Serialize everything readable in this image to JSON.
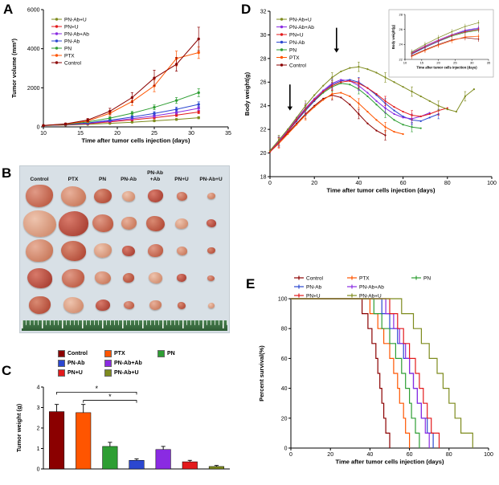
{
  "panels": {
    "A": "A",
    "B": "B",
    "C": "C",
    "D": "D",
    "E": "E"
  },
  "colors": {
    "Control": "#8B0000",
    "PTX": "#FF5500",
    "PN": "#2E9E33",
    "PN-Ab": "#2B47D0",
    "PN-Ab+Ab": "#8A2BE2",
    "PN+U": "#E31A1C",
    "PN-Ab+U": "#7E8B1E"
  },
  "panelB": {
    "bg": "#d8e0e6",
    "rows": 5,
    "row_scale": [
      1.0,
      1.2,
      1.0,
      0.9,
      0.8
    ],
    "columns": [
      {
        "top": "",
        "label": "Control",
        "slot": 44,
        "size": 34
      },
      {
        "top": "",
        "label": "PTX",
        "slot": 40,
        "size": 31
      },
      {
        "top": "",
        "label": "PN",
        "slot": 33,
        "size": 22
      },
      {
        "top": "",
        "label": "PN-Ab",
        "slot": 32,
        "size": 16
      },
      {
        "top": "PN-Ab",
        "label": "+Ab",
        "slot": 34,
        "size": 19
      },
      {
        "top": "",
        "label": "PN+U",
        "slot": 32,
        "size": 13
      },
      {
        "top": "",
        "label": "PN-Ab+U",
        "slot": 41,
        "size": 10
      }
    ],
    "palette": [
      [
        "#e09a86",
        "#b34a32"
      ],
      [
        "#e8b09a",
        "#c06a4a"
      ],
      [
        "#d98a72",
        "#a83a28"
      ],
      [
        "#eec4ae",
        "#c97e5e"
      ],
      [
        "#d87a6a",
        "#9e3226"
      ]
    ],
    "radii": [
      "50% 45% 55% 50%",
      "45% 55% 48% 52%",
      "55% 48% 50% 45%",
      "48% 52% 45% 55%"
    ]
  },
  "chart_data": [
    {
      "id": "A",
      "type": "line",
      "xlabel": "Time after tumor cells injection (days)",
      "ylabel": "Tumor volume (mm³)",
      "xlim": [
        10,
        35
      ],
      "ylim": [
        0,
        6000
      ],
      "xticks": [
        10,
        15,
        20,
        25,
        30,
        35
      ],
      "yticks": [
        0,
        2000,
        4000,
        6000
      ],
      "x": [
        10,
        13,
        16,
        19,
        22,
        25,
        28,
        31
      ],
      "legend_order": [
        "PN-Ab+U",
        "PN+U",
        "PN-Ab+Ab",
        "PN-Ab",
        "PN",
        "PTX",
        "Control"
      ],
      "series": [
        {
          "name": "PN-Ab+U",
          "y": [
            70,
            90,
            130,
            180,
            240,
            310,
            380,
            470
          ],
          "err": [
            15,
            18,
            22,
            28,
            35,
            40,
            45,
            55
          ]
        },
        {
          "name": "PN+U",
          "y": [
            70,
            100,
            160,
            260,
            360,
            470,
            600,
            760
          ],
          "err": [
            15,
            20,
            30,
            40,
            50,
            60,
            70,
            85
          ]
        },
        {
          "name": "PN-Ab+Ab",
          "y": [
            70,
            110,
            180,
            300,
            420,
            560,
            740,
            950
          ],
          "err": [
            15,
            22,
            35,
            45,
            60,
            75,
            90,
            110
          ]
        },
        {
          "name": "PN-Ab",
          "y": [
            70,
            115,
            200,
            340,
            500,
            690,
            900,
            1150
          ],
          "err": [
            15,
            25,
            40,
            55,
            70,
            90,
            110,
            130
          ]
        },
        {
          "name": "PN",
          "y": [
            70,
            125,
            250,
            450,
            700,
            1000,
            1350,
            1750
          ],
          "err": [
            15,
            30,
            50,
            70,
            90,
            120,
            150,
            200
          ]
        },
        {
          "name": "PTX",
          "y": [
            70,
            140,
            300,
            700,
            1300,
            2100,
            3500,
            3800
          ],
          "err": [
            20,
            40,
            70,
            120,
            200,
            300,
            380,
            300
          ]
        },
        {
          "name": "Control",
          "y": [
            70,
            150,
            350,
            800,
            1500,
            2500,
            3200,
            4500
          ],
          "err": [
            20,
            45,
            80,
            150,
            250,
            400,
            350,
            600
          ]
        }
      ]
    },
    {
      "id": "C",
      "type": "bar",
      "ylabel": "Tumor weight (g)",
      "ylim": [
        0,
        4
      ],
      "yticks": [
        0,
        1,
        2,
        3,
        4
      ],
      "categories": [
        "Control",
        "PTX",
        "PN",
        "PN-Ab",
        "PN-Ab+Ab",
        "PN+U",
        "PN-Ab+U"
      ],
      "values": [
        2.8,
        2.75,
        1.1,
        0.42,
        0.95,
        0.35,
        0.12
      ],
      "errors": [
        0.35,
        0.4,
        0.2,
        0.07,
        0.15,
        0.07,
        0.05
      ],
      "legend_rows": [
        [
          "Control",
          "PTX",
          "PN"
        ],
        [
          "PN-Ab",
          "PN-Ab+Ab"
        ],
        [
          "PN+U",
          "PN-Ab+U"
        ]
      ],
      "sig": [
        {
          "from": 0,
          "to": 3,
          "y": 3.75,
          "label": "*"
        },
        {
          "from": 1,
          "to": 3,
          "y": 3.35,
          "label": "*"
        }
      ]
    },
    {
      "id": "D",
      "type": "line",
      "xlabel": "Time after tumor cells injection (days)",
      "ylabel": "Body weight(g)",
      "xlim": [
        0,
        100
      ],
      "ylim": [
        18,
        32
      ],
      "xticks": [
        0,
        20,
        40,
        60,
        80,
        100
      ],
      "yticks": [
        18,
        20,
        22,
        24,
        26,
        28,
        30,
        32
      ],
      "legend_order": [
        "PN-Ab+U",
        "PN-Ab+Ab",
        "PN+U",
        "PN-Ab",
        "PN",
        "PTX",
        "Control"
      ],
      "series": [
        {
          "name": "Control",
          "x0": 0,
          "dx": 4,
          "err": 0.4,
          "y": [
            20.2,
            20.9,
            21.7,
            22.5,
            23.3,
            24.0,
            24.6,
            24.9,
            24.7,
            24.1,
            23.3,
            22.5,
            21.9,
            21.5
          ]
        },
        {
          "name": "PTX",
          "x0": 0,
          "dx": 4,
          "err": 0.4,
          "y": [
            20.1,
            20.8,
            21.6,
            22.4,
            23.2,
            23.9,
            24.5,
            25.0,
            25.1,
            24.8,
            24.2,
            23.5,
            22.8,
            22.2,
            21.8,
            21.6
          ]
        },
        {
          "name": "PN",
          "x0": 0,
          "dx": 4,
          "err": 0.4,
          "y": [
            20.2,
            21.0,
            21.9,
            22.8,
            23.6,
            24.4,
            25.1,
            25.6,
            25.9,
            25.8,
            25.4,
            24.8,
            24.1,
            23.4,
            22.8,
            22.4,
            22.2,
            22.1
          ]
        },
        {
          "name": "PN-Ab",
          "x0": 0,
          "dx": 4,
          "err": 0.4,
          "y": [
            20.1,
            20.9,
            21.8,
            22.7,
            23.6,
            24.4,
            25.2,
            25.8,
            26.1,
            26.2,
            26.0,
            25.5,
            24.9,
            24.2,
            23.6,
            23.1,
            22.8,
            22.7,
            23.0,
            23.3
          ]
        },
        {
          "name": "PN-Ab+Ab",
          "x0": 0,
          "dx": 4,
          "err": 0.4,
          "y": [
            20.2,
            21.0,
            21.9,
            22.9,
            23.8,
            24.6,
            25.3,
            25.9,
            26.2,
            26.1,
            25.7,
            25.1,
            24.4,
            23.8,
            23.3,
            23.0,
            22.9,
            23.1,
            23.4
          ]
        },
        {
          "name": "PN+U",
          "x0": 0,
          "dx": 4,
          "err": 0.4,
          "y": [
            20.1,
            20.9,
            21.8,
            22.8,
            23.7,
            24.5,
            25.2,
            25.7,
            26.0,
            26.1,
            25.9,
            25.5,
            25.0,
            24.4,
            23.9,
            23.5,
            23.2,
            23.1,
            23.3,
            23.6,
            23.8
          ]
        },
        {
          "name": "PN-Ab+U",
          "x0": 0,
          "dx": 4,
          "err": 0.4,
          "y": [
            20.2,
            21.1,
            22.0,
            23.0,
            24.0,
            24.9,
            25.7,
            26.4,
            26.9,
            27.2,
            27.3,
            27.1,
            26.8,
            26.4,
            26.0,
            25.6,
            25.2,
            24.8,
            24.4,
            24.0,
            23.7,
            23.5,
            24.8,
            25.4
          ]
        }
      ],
      "arrows": [
        {
          "x": 9,
          "from": 25.8,
          "to": 23.6
        },
        {
          "x": 30,
          "from": 30.6,
          "to": 28.5
        }
      ],
      "inset": {
        "xlabel": "Time after tumor cells injection (days)",
        "ylabel": "Body weight(g)",
        "xlim": [
          10,
          35
        ],
        "ylim": [
          22,
          28
        ],
        "xticks": [
          10,
          15,
          20,
          25,
          30,
          35
        ],
        "yticks": [
          22,
          24,
          26,
          28
        ]
      }
    },
    {
      "id": "E",
      "type": "km",
      "xlabel": "Time after tumor cells injection (days)",
      "ylabel": "Percent survival(%)",
      "xlim": [
        0,
        100
      ],
      "ylim": [
        0,
        100
      ],
      "xticks": [
        0,
        20,
        40,
        60,
        80,
        100
      ],
      "yticks": [
        0,
        20,
        40,
        60,
        80,
        100
      ],
      "legend_rows": [
        [
          "Control",
          "PTX",
          "PN"
        ],
        [
          "PN-Ab",
          "PN-Ab+Ab"
        ],
        [
          "PN+U",
          "PN-Ab+U"
        ]
      ],
      "series": [
        {
          "name": "Control",
          "drops": [
            36,
            39,
            41,
            43,
            44,
            45,
            46,
            47,
            48,
            50
          ]
        },
        {
          "name": "PTX",
          "drops": [
            40,
            44,
            47,
            50,
            52,
            54,
            55,
            57,
            58,
            60
          ]
        },
        {
          "name": "PN",
          "drops": [
            42,
            46,
            50,
            53,
            56,
            58,
            60,
            61,
            63,
            65
          ]
        },
        {
          "name": "PN-Ab",
          "drops": [
            46,
            50,
            54,
            57,
            60,
            62,
            64,
            66,
            69,
            72
          ]
        },
        {
          "name": "PN-Ab+Ab",
          "drops": [
            48,
            52,
            55,
            58,
            60,
            62,
            64,
            66,
            68,
            70
          ]
        },
        {
          "name": "PN+U",
          "drops": [
            50,
            54,
            57,
            60,
            63,
            65,
            67,
            69,
            71,
            75
          ]
        },
        {
          "name": "PN-Ab+U",
          "drops": [
            56,
            62,
            66,
            70,
            74,
            77,
            80,
            83,
            86,
            92
          ]
        }
      ]
    }
  ]
}
